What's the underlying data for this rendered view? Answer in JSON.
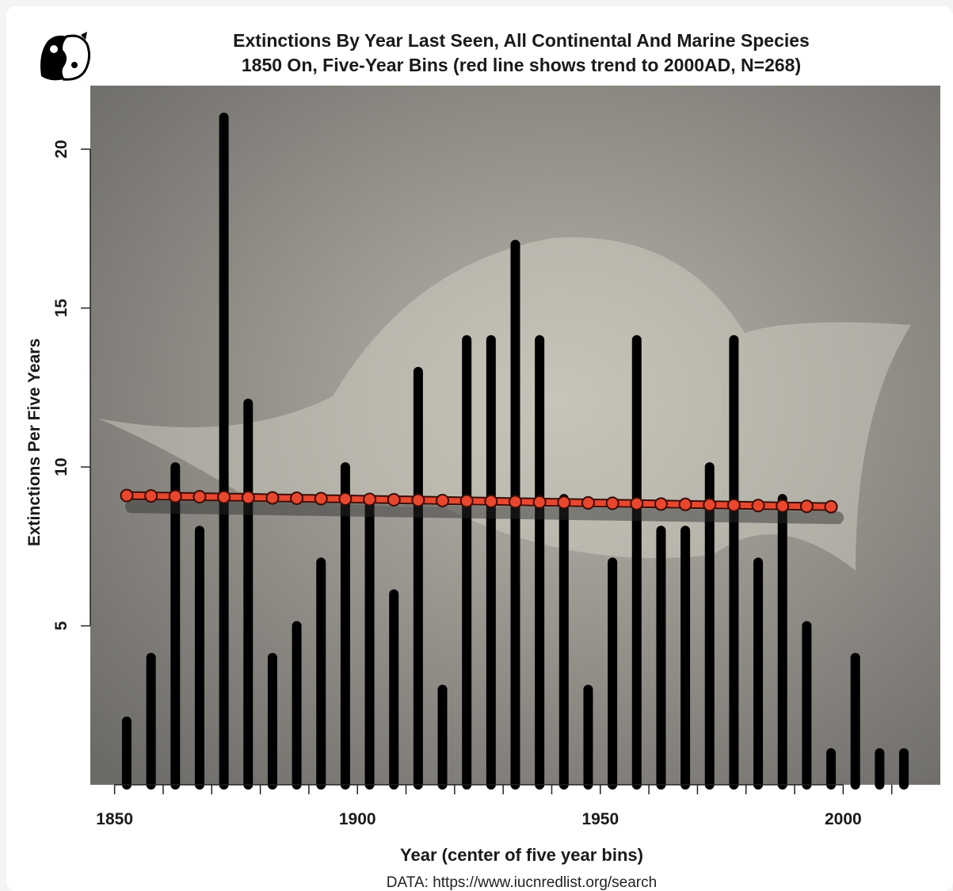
{
  "title_line1": "Extinctions By Year Last Seen, All Continental And Marine Species",
  "title_line2": "1850 On, Five-Year Bins (red line shows trend to 2000AD, N=268)",
  "source": "DATA: https://www.iucnredlist.org/search",
  "colors": {
    "bars": "#000000",
    "trend": "#e8472e",
    "trend_edge": "#3a0d06",
    "background": "#8a8782"
  },
  "chart_data": {
    "type": "bar",
    "title": "Extinctions By Year Last Seen, All Continental And Marine Species 1850 On, Five-Year Bins (red line shows trend to 2000AD, N=268)",
    "xlabel": "Year (center of five year bins)",
    "ylabel": "Extinctions Per Five Years",
    "xticks": [
      1850,
      1900,
      1950,
      2000
    ],
    "yticks": [
      5,
      10,
      15,
      20
    ],
    "xlim": [
      1845,
      2020
    ],
    "ylim": [
      0,
      22
    ],
    "x": [
      1852.5,
      1857.5,
      1862.5,
      1867.5,
      1872.5,
      1877.5,
      1882.5,
      1887.5,
      1892.5,
      1897.5,
      1902.5,
      1907.5,
      1912.5,
      1917.5,
      1922.5,
      1927.5,
      1932.5,
      1937.5,
      1942.5,
      1947.5,
      1952.5,
      1957.5,
      1962.5,
      1967.5,
      1972.5,
      1977.5,
      1982.5,
      1987.5,
      1992.5,
      1997.5,
      2002.5,
      2007.5,
      2012.5
    ],
    "values": [
      2,
      4,
      10,
      8,
      21,
      12,
      4,
      5,
      7,
      10,
      9,
      6,
      13,
      3,
      14,
      14,
      17,
      14,
      9,
      3,
      7,
      14,
      8,
      8,
      10,
      14,
      7,
      9,
      5,
      1,
      4,
      1,
      1
    ],
    "trend": {
      "name": "trend to 2000AD",
      "x": [
        1852.5,
        1857.5,
        1862.5,
        1867.5,
        1872.5,
        1877.5,
        1882.5,
        1887.5,
        1892.5,
        1897.5,
        1902.5,
        1907.5,
        1912.5,
        1917.5,
        1922.5,
        1927.5,
        1932.5,
        1937.5,
        1942.5,
        1947.5,
        1952.5,
        1957.5,
        1962.5,
        1967.5,
        1972.5,
        1977.5,
        1982.5,
        1987.5,
        1992.5,
        1997.5
      ],
      "y_start": 9.1,
      "y_end": 8.75
    },
    "grid": false,
    "background": "photo of triceratops skeleton (faded)"
  }
}
